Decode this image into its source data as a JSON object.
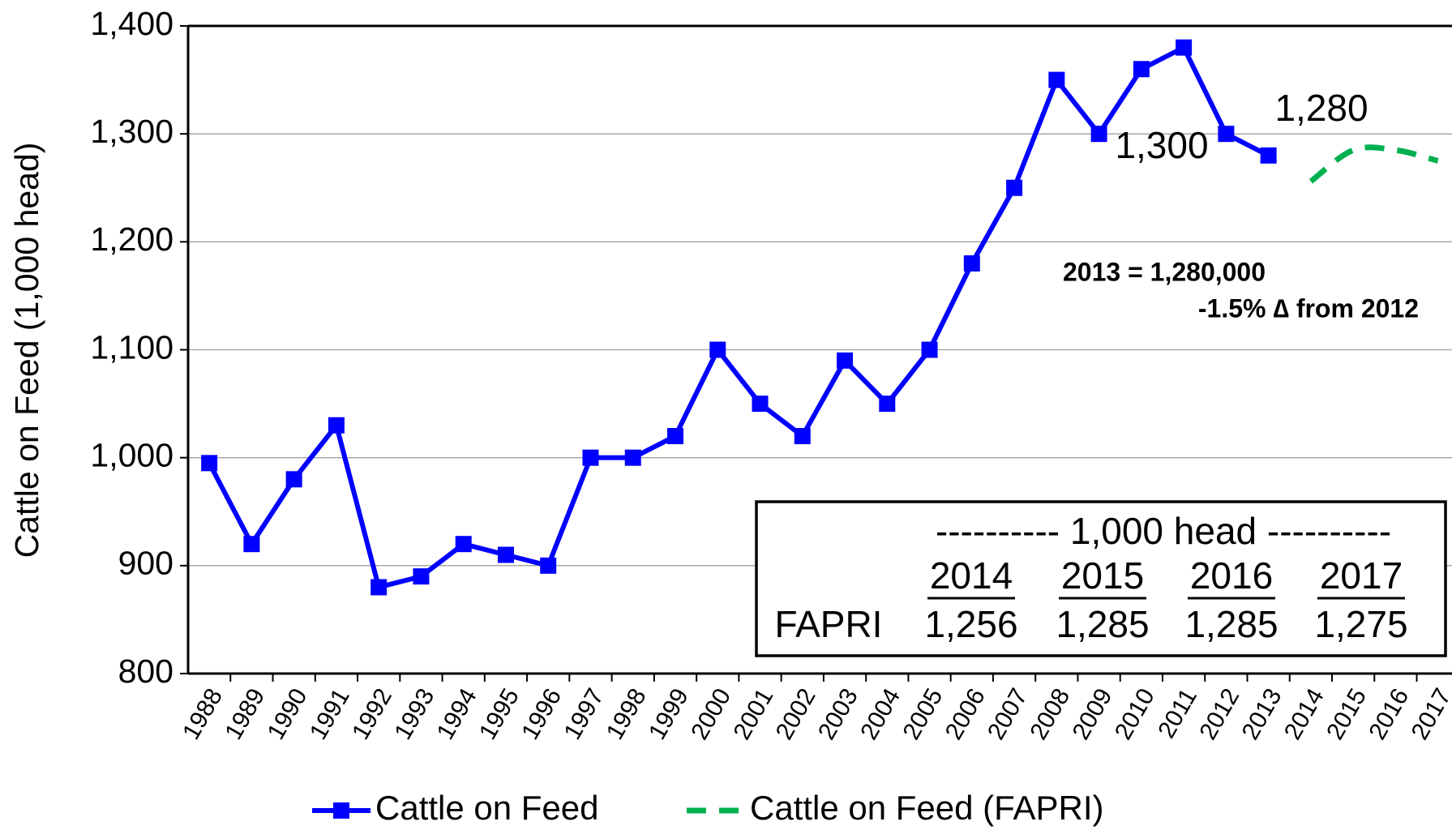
{
  "chart_data": {
    "type": "line",
    "ylabel": "Cattle on Feed (1,000 head)",
    "categories": [
      "1988",
      "1989",
      "1990",
      "1991",
      "1992",
      "1993",
      "1994",
      "1995",
      "1996",
      "1997",
      "1998",
      "1999",
      "2000",
      "2001",
      "2002",
      "2003",
      "2004",
      "2005",
      "2006",
      "2007",
      "2008",
      "2009",
      "2010",
      "2011",
      "2012",
      "2013",
      "2014",
      "2015",
      "2016",
      "2017"
    ],
    "series": [
      {
        "name": "Cattle on Feed",
        "color": "#0000ff",
        "style": "solid-marker",
        "values": [
          995,
          920,
          980,
          1030,
          880,
          890,
          920,
          910,
          900,
          1000,
          1000,
          1020,
          1100,
          1050,
          1020,
          1090,
          1050,
          1100,
          1180,
          1250,
          1350,
          1300,
          1360,
          1380,
          1300,
          1280,
          null,
          null,
          null,
          null
        ]
      },
      {
        "name": "Cattle on Feed (FAPRI)",
        "color": "#00b050",
        "style": "dashed",
        "values": [
          null,
          null,
          null,
          null,
          null,
          null,
          null,
          null,
          null,
          null,
          null,
          null,
          null,
          null,
          null,
          null,
          null,
          null,
          null,
          null,
          null,
          null,
          null,
          null,
          null,
          null,
          1256,
          1285,
          1285,
          1275
        ]
      }
    ],
    "ylim": [
      800,
      1400
    ],
    "yticks": [
      800,
      900,
      {
        "value": 1000,
        "label": "1,000"
      },
      {
        "value": 1100,
        "label": "1,100"
      },
      {
        "value": 1200,
        "label": "1,200"
      },
      {
        "value": 1300,
        "label": "1,300"
      },
      {
        "value": 1400,
        "label": "1,400"
      }
    ],
    "grid": true,
    "legend": "bottom",
    "annotations": [
      "1,280",
      "1,300",
      "2013 = 1,280,000",
      "-1.5% ∆ from 2012"
    ],
    "table": {
      "title": "---------- 1,000 head ----------",
      "columns": [
        "2014",
        "2015",
        "2016",
        "2017"
      ],
      "rows": [
        {
          "label": "FAPRI",
          "values": [
            "1,256",
            "1,285",
            "1,285",
            "1,275"
          ]
        }
      ]
    }
  }
}
